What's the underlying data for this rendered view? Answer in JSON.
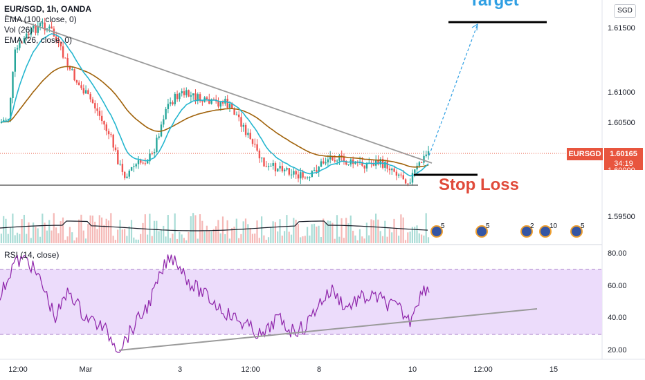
{
  "legend": {
    "symbol": "EUR/SGD, 1h, OANDA",
    "ema100": "EMA (100, close, 0)",
    "vol": "Vol (26)",
    "ema26": "EMA (26, close, 0)"
  },
  "rsi_legend": "RSI (14, close)",
  "currency_button": "SGD",
  "price_tag": {
    "symbol": "EURSGD",
    "price": "1.60165",
    "countdown": "34:19"
  },
  "annotations": {
    "target": "Target",
    "stop_loss": "Stop Loss"
  },
  "price_axis": [
    "1.61500",
    "1.61000",
    "1.60500",
    "1.60000",
    "1.59500"
  ],
  "rsi_axis": [
    "80.00",
    "60.00",
    "40.00",
    "20.00"
  ],
  "time_axis": [
    "12:00",
    "Mar",
    "3",
    "12:00",
    "8",
    "10",
    "12:00",
    "15"
  ],
  "events": [
    "5",
    "5",
    "2",
    "10",
    "5"
  ],
  "colors": {
    "up": "#26a69a",
    "down": "#ef5350",
    "ema100": "#a0620a",
    "ema26": "#24b6cf",
    "trendline": "#9a9a9a",
    "rsi_line": "#8e24aa",
    "rsi_band": "#ecdcfb",
    "target": "#2f9fe3",
    "stop": "#e04a3a"
  }
}
